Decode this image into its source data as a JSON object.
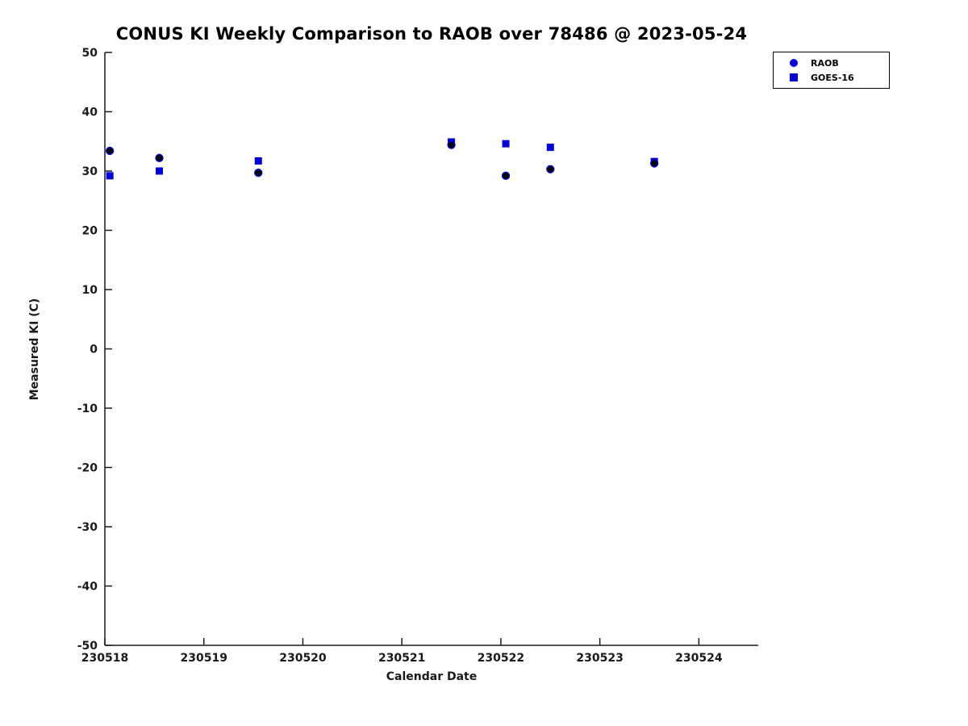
{
  "title": "CONUS KI Weekly Comparison to RAOB over 78486 @ 2023-05-24",
  "chart_data": {
    "type": "scatter",
    "title": "CONUS KI Weekly Comparison to RAOB over 78486 @ 2023-05-24",
    "xlabel": "Calendar Date",
    "ylabel": "Measured KI (C)",
    "xlim": [
      230518,
      230524.6
    ],
    "ylim": [
      -50,
      50
    ],
    "xticks": [
      230518,
      230519,
      230520,
      230521,
      230522,
      230523,
      230524
    ],
    "yticks": [
      -50,
      -40,
      -30,
      -20,
      -10,
      0,
      10,
      20,
      30,
      40,
      50
    ],
    "grid": false,
    "legend_position": "top-right",
    "colors": {
      "goes16": "#0000dd",
      "raob_face": "#000000",
      "raob_edge": "#0000dd"
    },
    "series": [
      {
        "name": "GOES-16",
        "marker": "square",
        "color": "#0000dd",
        "points": [
          [
            230518.05,
            29.2
          ],
          [
            230518.55,
            30.0
          ],
          [
            230519.55,
            31.7
          ],
          [
            230521.5,
            34.9
          ],
          [
            230522.05,
            34.6
          ],
          [
            230522.5,
            34.0
          ],
          [
            230523.55,
            31.6
          ]
        ]
      },
      {
        "name": "RAOB",
        "marker": "circle",
        "color": "#000000",
        "edge": "#0000dd",
        "points": [
          [
            230518.05,
            33.4
          ],
          [
            230518.55,
            32.2
          ],
          [
            230519.55,
            29.7
          ],
          [
            230521.5,
            34.4
          ],
          [
            230522.05,
            29.2
          ],
          [
            230522.5,
            30.3
          ],
          [
            230523.55,
            31.3
          ]
        ]
      }
    ],
    "legend": {
      "entries": [
        {
          "label": "RAOB",
          "marker": "circle",
          "color": "#0000dd"
        },
        {
          "label": "GOES-16",
          "marker": "square",
          "color": "#0000dd"
        }
      ]
    }
  }
}
